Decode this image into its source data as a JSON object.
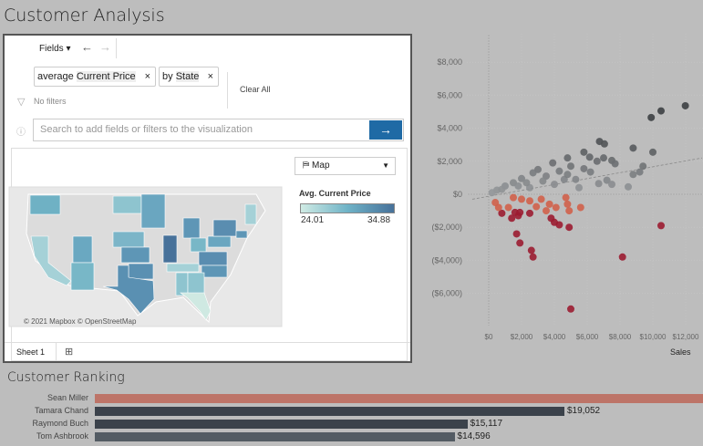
{
  "title": "Customer Analysis",
  "ask_data": {
    "fields_label": "Fields",
    "back_icon": "arrow-left-icon",
    "forward_icon": "arrow-right-icon",
    "pills": [
      {
        "prefix": "average",
        "field": "Current Price",
        "remove": "×"
      },
      {
        "prefix": "by",
        "field": "State",
        "remove": "×"
      }
    ],
    "clear_all": "Clear All",
    "no_filters": "No filters",
    "search_placeholder": "Search to add fields or filters to the visualization",
    "submit_icon": "→",
    "viz_type": "Map",
    "legend": {
      "title": "Avg. Current Price",
      "min": "24.01",
      "max": "34.88",
      "colors": [
        "#d0ebe4",
        "#47719a"
      ]
    },
    "attribution": "© 2021 Mapbox  © OpenStreetMap",
    "sheet_tab": "Sheet 1"
  },
  "scatter": {
    "xlabel": "Sales",
    "x_ticks": [
      "$0",
      "$2,000",
      "$4,000",
      "$6,000",
      "$8,000",
      "$10,000",
      "$12,000"
    ],
    "y_ticks": [
      "$8,000",
      "$6,000",
      "$4,000",
      "$2,000",
      "$0",
      "($2,000)",
      "($4,000)",
      "($6,000)"
    ]
  },
  "chart_data": {
    "type": "scatter",
    "xlabel": "Sales",
    "xlim": [
      -1000,
      13000
    ],
    "ylim": [
      -8000,
      9500
    ],
    "trend_line": [
      [
        -1000,
        -300
      ],
      [
        13000,
        2200
      ]
    ],
    "points": [
      [
        11980,
        5360
      ],
      [
        10500,
        5050
      ],
      [
        9900,
        4650
      ],
      [
        6750,
        3200
      ],
      [
        7050,
        3050
      ],
      [
        5800,
        2550
      ],
      [
        6150,
        2250
      ],
      [
        8800,
        2800
      ],
      [
        10000,
        2550
      ],
      [
        4800,
        2200
      ],
      [
        3900,
        1900
      ],
      [
        7000,
        2200
      ],
      [
        7500,
        2050
      ],
      [
        7700,
        1850
      ],
      [
        6600,
        2000
      ],
      [
        9400,
        1700
      ],
      [
        9200,
        1350
      ],
      [
        8800,
        1200
      ],
      [
        8500,
        450
      ],
      [
        7200,
        850
      ],
      [
        6700,
        650
      ],
      [
        5500,
        400
      ],
      [
        5300,
        900
      ],
      [
        3000,
        1500
      ],
      [
        2700,
        1300
      ],
      [
        2000,
        950
      ],
      [
        1500,
        700
      ],
      [
        1000,
        500
      ],
      [
        500,
        250
      ],
      [
        3500,
        1100
      ],
      [
        4300,
        1400
      ],
      [
        5000,
        1700
      ],
      [
        4600,
        900
      ],
      [
        4000,
        600
      ],
      [
        2500,
        400
      ],
      [
        7500,
        600
      ],
      [
        5800,
        1550
      ],
      [
        6200,
        1350
      ],
      [
        3300,
        800
      ],
      [
        1800,
        500
      ],
      [
        2300,
        700
      ],
      [
        4800,
        1200
      ],
      [
        200,
        100
      ],
      [
        800,
        300
      ],
      [
        10500,
        -1900
      ],
      [
        5600,
        -800
      ],
      [
        4800,
        -600
      ],
      [
        4900,
        -1000
      ],
      [
        3700,
        -600
      ],
      [
        4100,
        -800
      ],
      [
        3500,
        -1000
      ],
      [
        2900,
        -750
      ],
      [
        2500,
        -400
      ],
      [
        3200,
        -300
      ],
      [
        1500,
        -200
      ],
      [
        2000,
        -300
      ],
      [
        4700,
        -200
      ],
      [
        8150,
        -3800
      ],
      [
        5000,
        -6950
      ],
      [
        2600,
        -3400
      ],
      [
        2700,
        -3800
      ],
      [
        1700,
        -2400
      ],
      [
        1900,
        -2950
      ],
      [
        4900,
        -2000
      ],
      [
        4300,
        -1850
      ],
      [
        4000,
        -1700
      ],
      [
        3800,
        -1450
      ],
      [
        2500,
        -1150
      ],
      [
        1400,
        -1450
      ],
      [
        1800,
        -1300
      ],
      [
        1600,
        -1100
      ],
      [
        1200,
        -800
      ],
      [
        800,
        -1150
      ],
      [
        600,
        -800
      ],
      [
        400,
        -500
      ],
      [
        1900,
        -1100
      ]
    ]
  },
  "ranking": {
    "title": "Customer Ranking",
    "rows": [
      {
        "name": "Sean Miller",
        "value": 25043,
        "label": "",
        "color": "#bd7468"
      },
      {
        "name": "Tamara Chand",
        "value": 19052,
        "label": "$19,052",
        "color": "#3b424b"
      },
      {
        "name": "Raymond Buch",
        "value": 15117,
        "label": "$15,117",
        "color": "#3b424b"
      },
      {
        "name": "Tom Ashbrook",
        "value": 14596,
        "label": "$14,596",
        "color": "#535b63"
      }
    ]
  }
}
